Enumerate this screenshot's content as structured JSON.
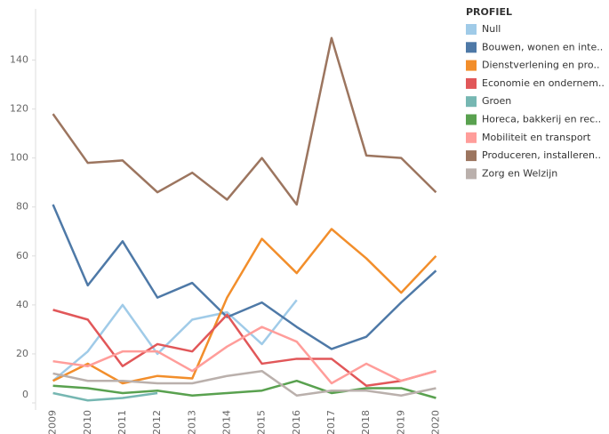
{
  "chart_data": {
    "type": "line",
    "legend_title": "PROFIEL",
    "legend": "right",
    "grid": false,
    "categories": [
      "2009",
      "2010",
      "2011",
      "2012",
      "2013",
      "2014",
      "2015",
      "2016",
      "2017",
      "2018",
      "2019",
      "2020"
    ],
    "ylim": [
      0,
      150
    ],
    "yticks": [
      0,
      20,
      40,
      60,
      80,
      100,
      120,
      140
    ],
    "series": [
      {
        "name": "Null",
        "color": "#a0cbe8",
        "values": [
          9,
          21,
          40,
          20,
          34,
          37,
          24,
          42,
          null,
          null,
          null,
          null
        ]
      },
      {
        "name": "Bouwen, wonen en inte..",
        "color": "#4e79a7",
        "values": [
          81,
          48,
          66,
          43,
          49,
          35,
          41,
          31,
          22,
          27,
          41,
          54
        ]
      },
      {
        "name": "Dienstverlening en pro..",
        "color": "#f28e2b",
        "values": [
          9,
          16,
          8,
          11,
          10,
          43,
          67,
          53,
          71,
          59,
          45,
          60
        ]
      },
      {
        "name": "Economie en ondernem..",
        "color": "#e15759",
        "values": [
          38,
          34,
          15,
          24,
          21,
          36,
          16,
          18,
          18,
          7,
          9,
          13
        ]
      },
      {
        "name": "Groen",
        "color": "#76b7b2",
        "values": [
          4,
          1,
          2,
          4,
          null,
          null,
          null,
          null,
          null,
          null,
          null,
          null
        ]
      },
      {
        "name": "Horeca, bakkerij en rec..",
        "color": "#59a14f",
        "values": [
          7,
          6,
          4,
          5,
          3,
          4,
          5,
          9,
          4,
          6,
          6,
          2
        ]
      },
      {
        "name": "Mobiliteit en transport",
        "color": "#ff9d9a",
        "values": [
          17,
          15,
          21,
          21,
          13,
          23,
          31,
          25,
          8,
          16,
          9,
          13
        ]
      },
      {
        "name": "Produceren, installeren..",
        "color": "#9c755f",
        "values": [
          118,
          98,
          99,
          86,
          94,
          83,
          100,
          81,
          149,
          101,
          100,
          86
        ]
      },
      {
        "name": "Zorg en Welzijn",
        "color": "#bab0ac",
        "values": [
          12,
          9,
          9,
          8,
          8,
          11,
          13,
          3,
          5,
          5,
          3,
          6
        ]
      }
    ]
  }
}
